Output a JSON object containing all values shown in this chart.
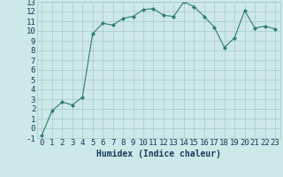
{
  "x": [
    0,
    1,
    2,
    3,
    4,
    5,
    6,
    7,
    8,
    9,
    10,
    11,
    12,
    13,
    14,
    15,
    16,
    17,
    18,
    19,
    20,
    21,
    22,
    23
  ],
  "y": [
    -0.7,
    1.8,
    2.7,
    2.4,
    3.2,
    9.7,
    10.8,
    10.6,
    11.3,
    11.5,
    12.2,
    12.3,
    11.6,
    11.5,
    13.0,
    12.5,
    11.5,
    10.4,
    8.3,
    9.3,
    12.1,
    10.3,
    10.5,
    10.2
  ],
  "xlabel": "Humidex (Indice chaleur)",
  "xlim": [
    0,
    23
  ],
  "ylim": [
    -1,
    13
  ],
  "yticks": [
    -1,
    0,
    1,
    2,
    3,
    4,
    5,
    6,
    7,
    8,
    9,
    10,
    11,
    12,
    13
  ],
  "xticks": [
    0,
    1,
    2,
    3,
    4,
    5,
    6,
    7,
    8,
    9,
    10,
    11,
    12,
    13,
    14,
    15,
    16,
    17,
    18,
    19,
    20,
    21,
    22,
    23
  ],
  "line_color": "#2e7d6e",
  "marker": "D",
  "marker_size": 2.0,
  "bg_color": "#cce8e8",
  "grid_color": "#aac8c8",
  "font_color": "#1a3a5c",
  "font_size": 6.5,
  "xlabel_size": 7.0
}
